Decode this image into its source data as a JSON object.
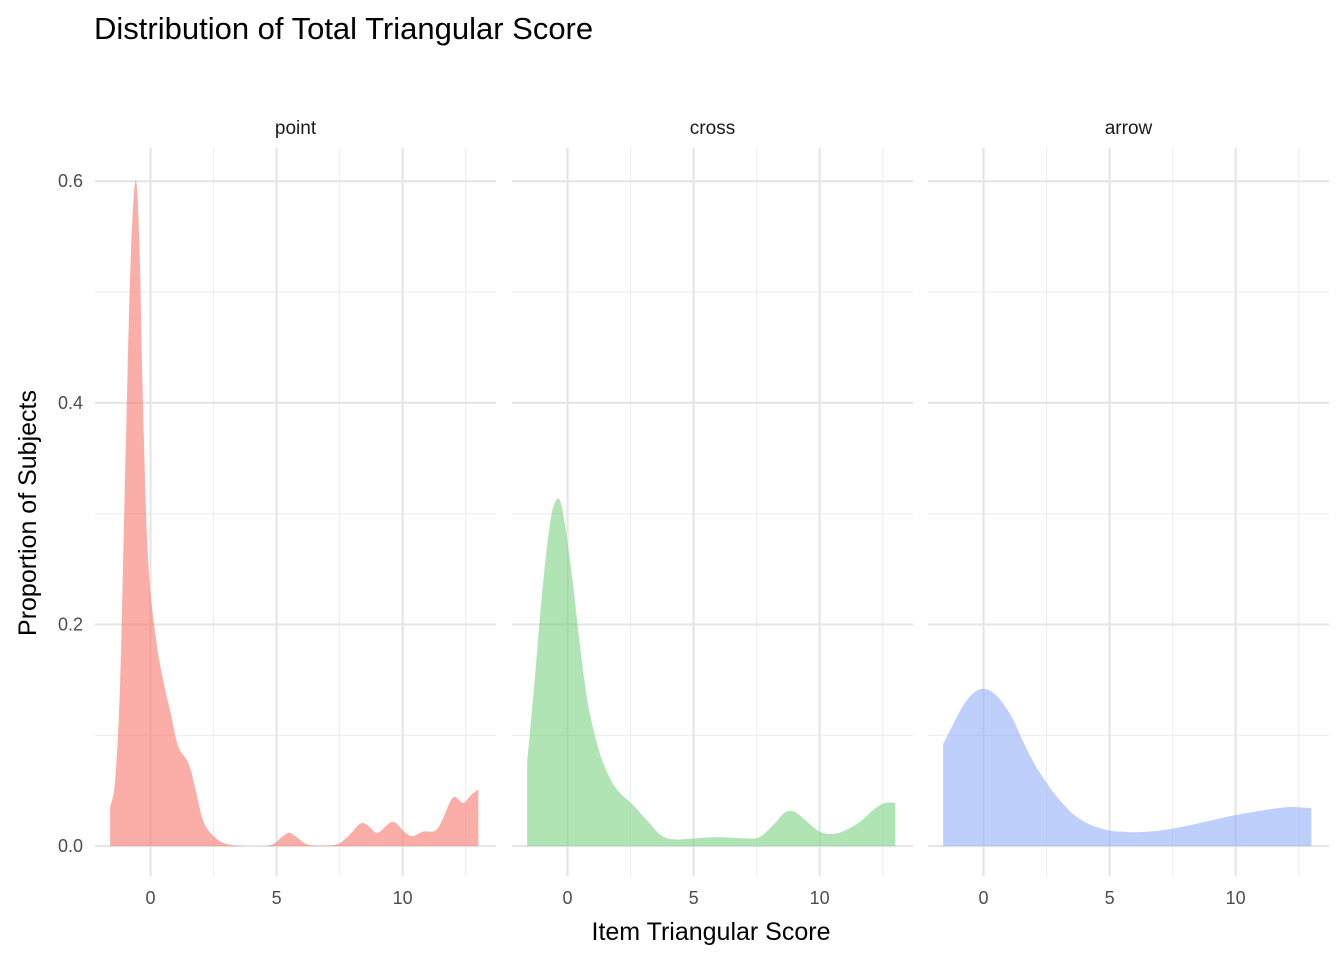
{
  "chart_data": {
    "type": "area",
    "title": "Distribution of Total Triangular Score",
    "xlabel": "Item Triangular Score",
    "ylabel": "Proportion of Subjects",
    "xlim": [
      -2.2,
      13.7
    ],
    "ylim": [
      -0.027,
      0.63
    ],
    "x_ticks": [
      0,
      5,
      10
    ],
    "y_ticks": [
      0.0,
      0.2,
      0.4,
      0.6
    ],
    "x_tick_labels": [
      "0",
      "5",
      "10"
    ],
    "y_tick_labels": [
      "0.0",
      "0.2",
      "0.4",
      "0.6"
    ],
    "grid": true,
    "legend": "none",
    "panels": [
      {
        "name": "point",
        "color": "#F8766D",
        "points": [
          [
            -1.6,
            0.035
          ],
          [
            -1.4,
            0.06
          ],
          [
            -1.2,
            0.15
          ],
          [
            -1.0,
            0.34
          ],
          [
            -0.8,
            0.52
          ],
          [
            -0.6,
            0.6
          ],
          [
            -0.45,
            0.55
          ],
          [
            -0.3,
            0.4
          ],
          [
            -0.1,
            0.26
          ],
          [
            0.2,
            0.19
          ],
          [
            0.5,
            0.15
          ],
          [
            0.8,
            0.12
          ],
          [
            1.1,
            0.09
          ],
          [
            1.5,
            0.075
          ],
          [
            1.8,
            0.05
          ],
          [
            2.1,
            0.022
          ],
          [
            2.6,
            0.007
          ],
          [
            3.2,
            0.001
          ],
          [
            4.2,
            0.0
          ],
          [
            4.8,
            0.001
          ],
          [
            5.2,
            0.008
          ],
          [
            5.5,
            0.012
          ],
          [
            5.8,
            0.008
          ],
          [
            6.3,
            0.001
          ],
          [
            7.3,
            0.001
          ],
          [
            7.8,
            0.008
          ],
          [
            8.3,
            0.02
          ],
          [
            8.6,
            0.019
          ],
          [
            9.0,
            0.012
          ],
          [
            9.6,
            0.022
          ],
          [
            10.1,
            0.012
          ],
          [
            10.4,
            0.009
          ],
          [
            10.8,
            0.013
          ],
          [
            11.3,
            0.014
          ],
          [
            11.6,
            0.025
          ],
          [
            12.0,
            0.044
          ],
          [
            12.4,
            0.039
          ],
          [
            12.7,
            0.046
          ],
          [
            13.0,
            0.051
          ]
        ]
      },
      {
        "name": "cross",
        "color": "#7CD284",
        "points": [
          [
            -1.6,
            0.075
          ],
          [
            -1.3,
            0.15
          ],
          [
            -1.0,
            0.23
          ],
          [
            -0.7,
            0.29
          ],
          [
            -0.5,
            0.31
          ],
          [
            -0.3,
            0.312
          ],
          [
            -0.1,
            0.29
          ],
          [
            0.2,
            0.24
          ],
          [
            0.5,
            0.18
          ],
          [
            0.8,
            0.13
          ],
          [
            1.2,
            0.09
          ],
          [
            1.6,
            0.065
          ],
          [
            2.0,
            0.05
          ],
          [
            2.6,
            0.037
          ],
          [
            3.2,
            0.022
          ],
          [
            3.7,
            0.01
          ],
          [
            4.2,
            0.006
          ],
          [
            5.0,
            0.007
          ],
          [
            6.0,
            0.008
          ],
          [
            7.0,
            0.007
          ],
          [
            7.6,
            0.008
          ],
          [
            8.2,
            0.02
          ],
          [
            8.6,
            0.03
          ],
          [
            9.0,
            0.031
          ],
          [
            9.5,
            0.022
          ],
          [
            10.0,
            0.013
          ],
          [
            10.5,
            0.011
          ],
          [
            11.0,
            0.014
          ],
          [
            11.6,
            0.022
          ],
          [
            12.2,
            0.034
          ],
          [
            12.6,
            0.039
          ],
          [
            13.0,
            0.039
          ]
        ]
      },
      {
        "name": "arrow",
        "color": "#93AFF8",
        "points": [
          [
            -1.6,
            0.092
          ],
          [
            -1.2,
            0.11
          ],
          [
            -0.8,
            0.127
          ],
          [
            -0.4,
            0.138
          ],
          [
            0.0,
            0.142
          ],
          [
            0.4,
            0.138
          ],
          [
            0.8,
            0.128
          ],
          [
            1.2,
            0.113
          ],
          [
            1.6,
            0.093
          ],
          [
            2.0,
            0.075
          ],
          [
            2.5,
            0.057
          ],
          [
            3.0,
            0.042
          ],
          [
            3.5,
            0.03
          ],
          [
            4.0,
            0.022
          ],
          [
            4.5,
            0.017
          ],
          [
            5.0,
            0.014
          ],
          [
            5.5,
            0.013
          ],
          [
            6.0,
            0.0125
          ],
          [
            7.0,
            0.014
          ],
          [
            8.0,
            0.018
          ],
          [
            9.0,
            0.023
          ],
          [
            10.0,
            0.028
          ],
          [
            11.0,
            0.032
          ],
          [
            12.0,
            0.035
          ],
          [
            12.5,
            0.035
          ],
          [
            13.0,
            0.034
          ]
        ]
      }
    ]
  }
}
